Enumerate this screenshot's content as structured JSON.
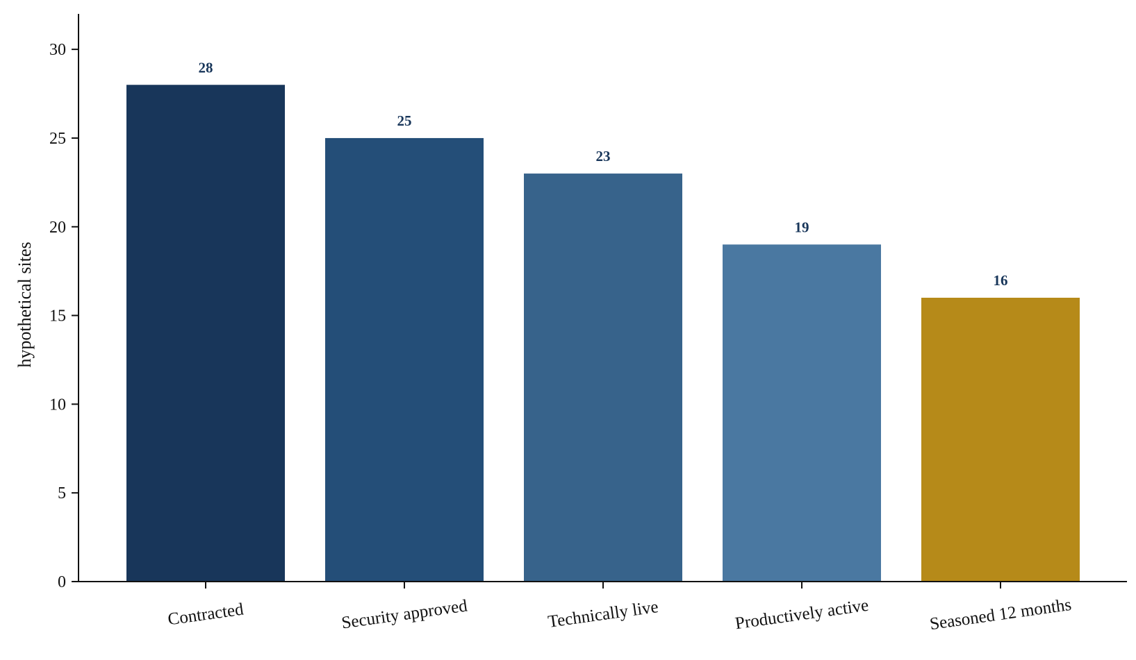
{
  "chart_data": {
    "type": "bar",
    "categories": [
      "Contracted",
      "Security approved",
      "Technically live",
      "Productively active",
      "Seasoned 12 months"
    ],
    "values": [
      28,
      25,
      23,
      19,
      16
    ],
    "value_labels": [
      "28",
      "25",
      "23",
      "19",
      "16"
    ],
    "bar_colors": [
      "#18365a",
      "#244e78",
      "#37638b",
      "#4a78a1",
      "#b68a19"
    ],
    "value_label_color": "#18365a",
    "ylabel": "hypothetical sites",
    "ylim": [
      0,
      32
    ],
    "yticks": [
      0,
      5,
      10,
      15,
      20,
      25,
      30
    ],
    "ytick_labels": [
      "0",
      "5",
      "10",
      "15",
      "20",
      "25",
      "30"
    ],
    "grid": false,
    "xtick_rotation_deg": -8
  }
}
